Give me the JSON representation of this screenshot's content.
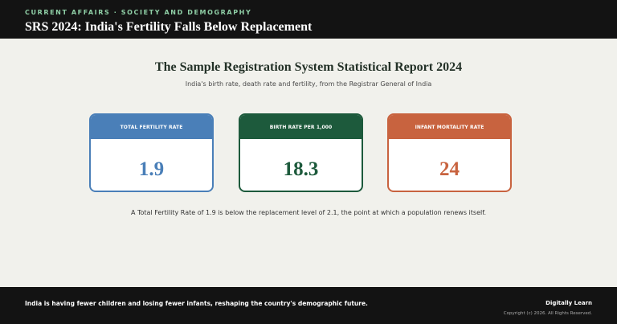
{
  "header": {
    "kicker": "CURRENT AFFAIRS · SOCIETY AND DEMOGRAPHY",
    "headline": "SRS 2024: India's Fertility Falls Below Replacement"
  },
  "report": {
    "title": "The Sample Registration System Statistical Report 2024",
    "subtitle": "India's birth rate, death rate and fertility, from the Registrar General of India"
  },
  "cards": [
    {
      "label": "TOTAL FERTILITY RATE",
      "value": "1.9",
      "color": "#4a7fb8"
    },
    {
      "label": "BIRTH RATE PER 1,000",
      "value": "18.3",
      "color": "#1d5a3c"
    },
    {
      "label": "INFANT MORTALITY RATE",
      "value": "24",
      "color": "#c8633f"
    }
  ],
  "note": "A Total Fertility Rate of 1.9 is below the replacement level of 2.1, the point at which a population renews itself.",
  "footer": {
    "tagline": "India is having fewer children and losing fewer infants, reshaping the country's demographic future.",
    "brand": "Digitally Learn",
    "copyright": "Copyright (c) 2026. All Rights Reserved."
  }
}
